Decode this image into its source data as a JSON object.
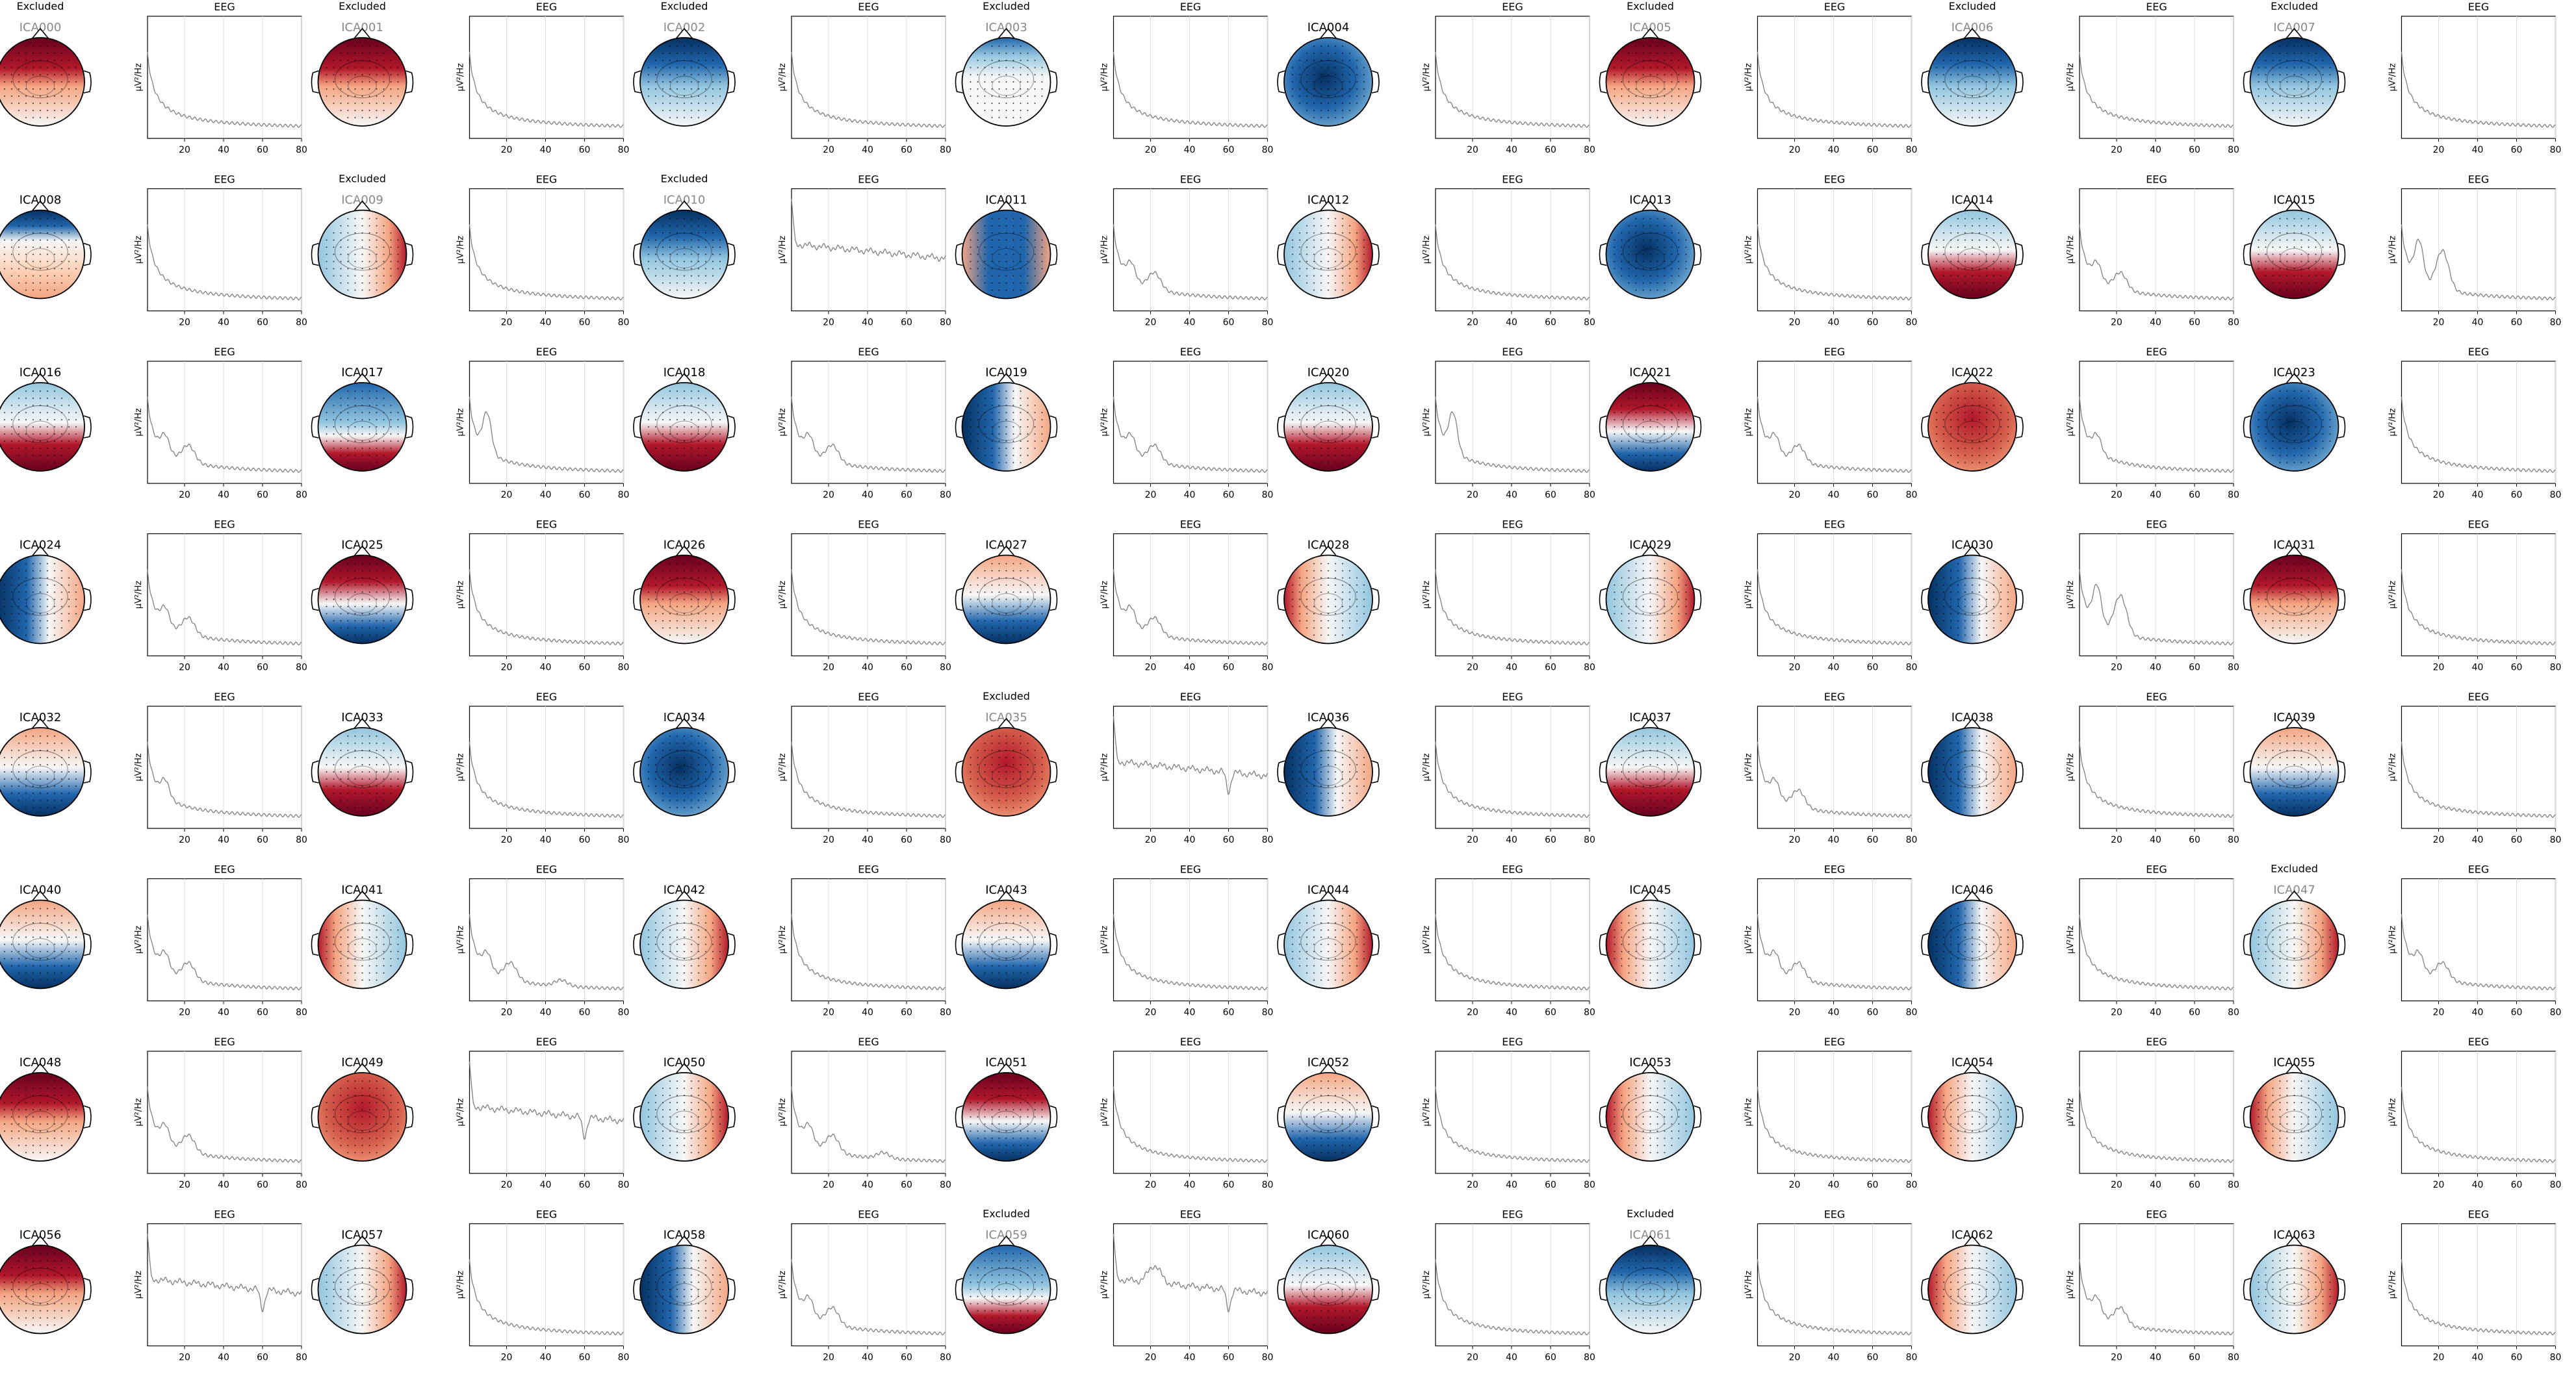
{
  "figure": {
    "type": "ica-component-grid",
    "excluded_label": "Excluded",
    "eeg_label": "EEG",
    "psd_ylabel": "µV²/Hz",
    "x_ticks": [
      20,
      40,
      60,
      80
    ],
    "xlim": [
      1,
      80
    ],
    "colors": {
      "excluded_text": "#888888",
      "text": "#000000",
      "line": "#808080",
      "grid": "#dcdcdc",
      "positive": "#b2182b",
      "negative": "#2166ac",
      "neutral": "#f7f7f7"
    }
  },
  "chart_data": {
    "type": "line",
    "x_label": "",
    "y_label": "µV²/Hz",
    "x_range": [
      1,
      80
    ],
    "grid": "vertical",
    "components": [
      {
        "name": "ICA000",
        "excluded": true,
        "topo": {
          "pattern": "frontal-red"
        },
        "psd": {
          "peaks": []
        }
      },
      {
        "name": "ICA001",
        "excluded": true,
        "topo": {
          "pattern": "frontal-red"
        },
        "psd": {
          "peaks": []
        }
      },
      {
        "name": "ICA002",
        "excluded": true,
        "topo": {
          "pattern": "frontal-blue"
        },
        "psd": {
          "peaks": []
        }
      },
      {
        "name": "ICA003",
        "excluded": true,
        "topo": {
          "pattern": "frontal-blue-light"
        },
        "psd": {
          "peaks": []
        }
      },
      {
        "name": "ICA004",
        "excluded": false,
        "topo": {
          "pattern": "global-blue"
        },
        "psd": {
          "peaks": []
        }
      },
      {
        "name": "ICA005",
        "excluded": true,
        "topo": {
          "pattern": "frontal-red"
        },
        "psd": {
          "peaks": []
        }
      },
      {
        "name": "ICA006",
        "excluded": true,
        "topo": {
          "pattern": "frontal-blue"
        },
        "psd": {
          "peaks": []
        }
      },
      {
        "name": "ICA007",
        "excluded": true,
        "topo": {
          "pattern": "frontal-blue"
        },
        "psd": {
          "peaks": []
        }
      },
      {
        "name": "ICA008",
        "excluded": false,
        "topo": {
          "pattern": "frontal-blue-red"
        },
        "psd": {
          "peaks": []
        }
      },
      {
        "name": "ICA009",
        "excluded": true,
        "topo": {
          "pattern": "right-red"
        },
        "psd": {
          "peaks": []
        }
      },
      {
        "name": "ICA010",
        "excluded": true,
        "topo": {
          "pattern": "frontal-blue"
        },
        "psd": {
          "peaks": [],
          "flat": true
        }
      },
      {
        "name": "ICA011",
        "excluded": false,
        "topo": {
          "pattern": "central-blue"
        },
        "psd": {
          "peaks": [
            10,
            22
          ]
        }
      },
      {
        "name": "ICA012",
        "excluded": false,
        "topo": {
          "pattern": "right-red"
        },
        "psd": {
          "peaks": []
        }
      },
      {
        "name": "ICA013",
        "excluded": false,
        "topo": {
          "pattern": "global-blue"
        },
        "psd": {
          "peaks": []
        }
      },
      {
        "name": "ICA014",
        "excluded": false,
        "topo": {
          "pattern": "posterior-red"
        },
        "psd": {
          "peaks": [
            10,
            22
          ]
        }
      },
      {
        "name": "ICA015",
        "excluded": false,
        "topo": {
          "pattern": "posterior-red"
        },
        "psd": {
          "peaks": [
            10,
            22
          ],
          "strong": true
        }
      },
      {
        "name": "ICA016",
        "excluded": false,
        "topo": {
          "pattern": "posterior-red"
        },
        "psd": {
          "peaks": [
            10,
            22
          ]
        }
      },
      {
        "name": "ICA017",
        "excluded": false,
        "topo": {
          "pattern": "frontal-blue-posterior-red"
        },
        "psd": {
          "peaks": [
            10
          ],
          "strong": true
        }
      },
      {
        "name": "ICA018",
        "excluded": false,
        "topo": {
          "pattern": "posterior-red"
        },
        "psd": {
          "peaks": [
            10,
            22
          ]
        }
      },
      {
        "name": "ICA019",
        "excluded": false,
        "topo": {
          "pattern": "left-blue"
        },
        "psd": {
          "peaks": [
            10,
            22
          ]
        }
      },
      {
        "name": "ICA020",
        "excluded": false,
        "topo": {
          "pattern": "posterior-red"
        },
        "psd": {
          "peaks": [
            10
          ],
          "strong": true
        }
      },
      {
        "name": "ICA021",
        "excluded": false,
        "topo": {
          "pattern": "frontal-red-posterior-blue"
        },
        "psd": {
          "peaks": [
            10,
            22
          ]
        }
      },
      {
        "name": "ICA022",
        "excluded": false,
        "topo": {
          "pattern": "global-red"
        },
        "psd": {
          "peaks": [
            10
          ]
        }
      },
      {
        "name": "ICA023",
        "excluded": false,
        "topo": {
          "pattern": "global-blue"
        },
        "psd": {
          "peaks": []
        }
      },
      {
        "name": "ICA024",
        "excluded": false,
        "topo": {
          "pattern": "left-blue"
        },
        "psd": {
          "peaks": [
            10,
            22
          ]
        }
      },
      {
        "name": "ICA025",
        "excluded": false,
        "topo": {
          "pattern": "frontal-red-posterior-blue"
        },
        "psd": {
          "peaks": []
        }
      },
      {
        "name": "ICA026",
        "excluded": false,
        "topo": {
          "pattern": "frontal-red"
        },
        "psd": {
          "peaks": []
        }
      },
      {
        "name": "ICA027",
        "excluded": false,
        "topo": {
          "pattern": "posterior-blue"
        },
        "psd": {
          "peaks": [
            10,
            22
          ]
        }
      },
      {
        "name": "ICA028",
        "excluded": false,
        "topo": {
          "pattern": "left-red"
        },
        "psd": {
          "peaks": []
        }
      },
      {
        "name": "ICA029",
        "excluded": false,
        "topo": {
          "pattern": "right-red"
        },
        "psd": {
          "peaks": []
        }
      },
      {
        "name": "ICA030",
        "excluded": false,
        "topo": {
          "pattern": "left-blue"
        },
        "psd": {
          "peaks": [
            10,
            22
          ],
          "strong": true
        }
      },
      {
        "name": "ICA031",
        "excluded": false,
        "topo": {
          "pattern": "frontal-red"
        },
        "psd": {
          "peaks": []
        }
      },
      {
        "name": "ICA032",
        "excluded": false,
        "topo": {
          "pattern": "posterior-blue"
        },
        "psd": {
          "peaks": [
            10
          ]
        }
      },
      {
        "name": "ICA033",
        "excluded": false,
        "topo": {
          "pattern": "posterior-red"
        },
        "psd": {
          "peaks": []
        }
      },
      {
        "name": "ICA034",
        "excluded": false,
        "topo": {
          "pattern": "global-blue"
        },
        "psd": {
          "peaks": []
        }
      },
      {
        "name": "ICA035",
        "excluded": true,
        "topo": {
          "pattern": "global-red"
        },
        "psd": {
          "peaks": [],
          "flat": true,
          "notch": 60
        }
      },
      {
        "name": "ICA036",
        "excluded": false,
        "topo": {
          "pattern": "left-blue"
        },
        "psd": {
          "peaks": []
        }
      },
      {
        "name": "ICA037",
        "excluded": false,
        "topo": {
          "pattern": "posterior-red"
        },
        "psd": {
          "peaks": [
            10,
            22
          ]
        }
      },
      {
        "name": "ICA038",
        "excluded": false,
        "topo": {
          "pattern": "left-blue"
        },
        "psd": {
          "peaks": []
        }
      },
      {
        "name": "ICA039",
        "excluded": false,
        "topo": {
          "pattern": "posterior-blue"
        },
        "psd": {
          "peaks": []
        }
      },
      {
        "name": "ICA040",
        "excluded": false,
        "topo": {
          "pattern": "posterior-blue"
        },
        "psd": {
          "peaks": [
            10,
            22
          ]
        }
      },
      {
        "name": "ICA041",
        "excluded": false,
        "topo": {
          "pattern": "left-red"
        },
        "psd": {
          "peaks": [
            10,
            22,
            48
          ]
        }
      },
      {
        "name": "ICA042",
        "excluded": false,
        "topo": {
          "pattern": "right-red"
        },
        "psd": {
          "peaks": []
        }
      },
      {
        "name": "ICA043",
        "excluded": false,
        "topo": {
          "pattern": "posterior-blue"
        },
        "psd": {
          "peaks": []
        }
      },
      {
        "name": "ICA044",
        "excluded": false,
        "topo": {
          "pattern": "right-red"
        },
        "psd": {
          "peaks": []
        }
      },
      {
        "name": "ICA045",
        "excluded": false,
        "topo": {
          "pattern": "left-red"
        },
        "psd": {
          "peaks": [
            10,
            22
          ]
        }
      },
      {
        "name": "ICA046",
        "excluded": false,
        "topo": {
          "pattern": "left-blue"
        },
        "psd": {
          "peaks": []
        }
      },
      {
        "name": "ICA047",
        "excluded": true,
        "topo": {
          "pattern": "right-red"
        },
        "psd": {
          "peaks": [
            10,
            22
          ]
        }
      },
      {
        "name": "ICA048",
        "excluded": false,
        "topo": {
          "pattern": "frontal-red"
        },
        "psd": {
          "peaks": [
            10,
            22
          ]
        }
      },
      {
        "name": "ICA049",
        "excluded": false,
        "topo": {
          "pattern": "global-red"
        },
        "psd": {
          "peaks": [],
          "flat": true,
          "notch": 60
        }
      },
      {
        "name": "ICA050",
        "excluded": false,
        "topo": {
          "pattern": "right-red"
        },
        "psd": {
          "peaks": [
            10,
            22,
            48
          ]
        }
      },
      {
        "name": "ICA051",
        "excluded": false,
        "topo": {
          "pattern": "frontal-red-posterior-blue"
        },
        "psd": {
          "peaks": []
        }
      },
      {
        "name": "ICA052",
        "excluded": false,
        "topo": {
          "pattern": "posterior-blue"
        },
        "psd": {
          "peaks": []
        }
      },
      {
        "name": "ICA053",
        "excluded": false,
        "topo": {
          "pattern": "left-red"
        },
        "psd": {
          "peaks": []
        }
      },
      {
        "name": "ICA054",
        "excluded": false,
        "topo": {
          "pattern": "left-red"
        },
        "psd": {
          "peaks": []
        }
      },
      {
        "name": "ICA055",
        "excluded": false,
        "topo": {
          "pattern": "left-red"
        },
        "psd": {
          "peaks": []
        }
      },
      {
        "name": "ICA056",
        "excluded": false,
        "topo": {
          "pattern": "frontal-red"
        },
        "psd": {
          "peaks": [],
          "flat": true,
          "notch": 60
        }
      },
      {
        "name": "ICA057",
        "excluded": false,
        "topo": {
          "pattern": "right-red"
        },
        "psd": {
          "peaks": []
        }
      },
      {
        "name": "ICA058",
        "excluded": false,
        "topo": {
          "pattern": "left-blue"
        },
        "psd": {
          "peaks": [
            10,
            22
          ]
        }
      },
      {
        "name": "ICA059",
        "excluded": true,
        "topo": {
          "pattern": "frontal-blue-posterior-red"
        },
        "psd": {
          "peaks": [
            22
          ],
          "flat": true,
          "notch": 60
        }
      },
      {
        "name": "ICA060",
        "excluded": false,
        "topo": {
          "pattern": "posterior-red"
        },
        "psd": {
          "peaks": []
        }
      },
      {
        "name": "ICA061",
        "excluded": true,
        "topo": {
          "pattern": "frontal-blue"
        },
        "psd": {
          "peaks": []
        }
      },
      {
        "name": "ICA062",
        "excluded": false,
        "topo": {
          "pattern": "left-red"
        },
        "psd": {
          "peaks": [
            10,
            22
          ]
        }
      },
      {
        "name": "ICA063",
        "excluded": false,
        "topo": {
          "pattern": "right-red"
        },
        "psd": {
          "peaks": []
        }
      }
    ]
  }
}
